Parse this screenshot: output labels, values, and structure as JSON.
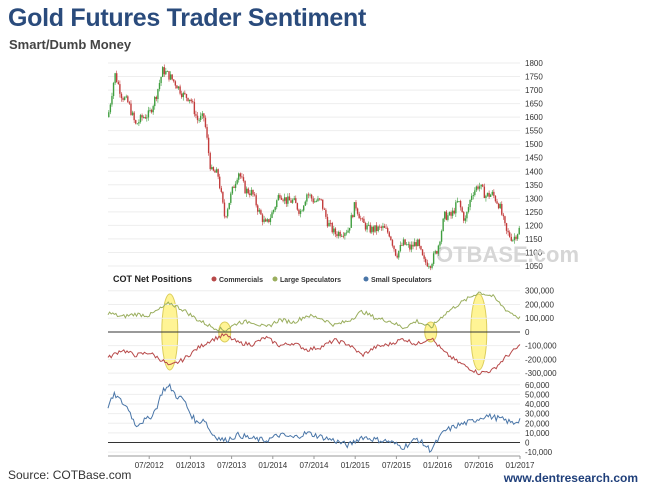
{
  "title": "Gold Futures Trader Sentiment",
  "subtitle": "Smart/Dumb Money",
  "source": "Source: COTBase.com",
  "website": "www.dentresearch.com",
  "watermark": "OTBASE.com",
  "colors": {
    "title": "#2a4b7c",
    "up_candle": "#3f9e3f",
    "down_candle": "#c23b3b",
    "commercials": "#b84a4a",
    "large_speculators": "#9aae5e",
    "small_speculators": "#4a76a8",
    "highlight_fill": "#fff38a",
    "highlight_stroke": "#d8c84a"
  },
  "chart_data": [
    {
      "type": "candlestick",
      "name": "price",
      "title": "",
      "ylim": [
        1050,
        1800
      ],
      "yticks": [
        1050,
        1100,
        1150,
        1200,
        1250,
        1300,
        1350,
        1400,
        1450,
        1500,
        1550,
        1600,
        1650,
        1700,
        1750,
        1800
      ],
      "x_range": [
        "2012-01",
        "2017-01"
      ],
      "price_path": [
        [
          "2012-01",
          1600
        ],
        [
          "2012-02",
          1760
        ],
        [
          "2012-03",
          1680
        ],
        [
          "2012-04",
          1650
        ],
        [
          "2012-05",
          1570
        ],
        [
          "2012-06",
          1600
        ],
        [
          "2012-07",
          1610
        ],
        [
          "2012-08",
          1680
        ],
        [
          "2012-09",
          1775
        ],
        [
          "2012-10",
          1750
        ],
        [
          "2012-11",
          1720
        ],
        [
          "2012-12",
          1680
        ],
        [
          "2013-01",
          1670
        ],
        [
          "2013-02",
          1590
        ],
        [
          "2013-03",
          1600
        ],
        [
          "2013-04",
          1400
        ],
        [
          "2013-05",
          1390
        ],
        [
          "2013-06",
          1230
        ],
        [
          "2013-07",
          1320
        ],
        [
          "2013-08",
          1400
        ],
        [
          "2013-09",
          1330
        ],
        [
          "2013-10",
          1320
        ],
        [
          "2013-11",
          1250
        ],
        [
          "2013-12",
          1200
        ],
        [
          "2014-01",
          1250
        ],
        [
          "2014-02",
          1320
        ],
        [
          "2014-03",
          1290
        ],
        [
          "2014-04",
          1290
        ],
        [
          "2014-05",
          1250
        ],
        [
          "2014-06",
          1320
        ],
        [
          "2014-07",
          1290
        ],
        [
          "2014-08",
          1290
        ],
        [
          "2014-09",
          1210
        ],
        [
          "2014-10",
          1170
        ],
        [
          "2014-11",
          1175
        ],
        [
          "2014-12",
          1185
        ],
        [
          "2015-01",
          1280
        ],
        [
          "2015-02",
          1210
        ],
        [
          "2015-03",
          1185
        ],
        [
          "2015-04",
          1185
        ],
        [
          "2015-05",
          1190
        ],
        [
          "2015-06",
          1170
        ],
        [
          "2015-07",
          1090
        ],
        [
          "2015-08",
          1135
        ],
        [
          "2015-09",
          1115
        ],
        [
          "2015-10",
          1140
        ],
        [
          "2015-11",
          1065
        ],
        [
          "2015-12",
          1060
        ],
        [
          "2016-01",
          1115
        ],
        [
          "2016-02",
          1235
        ],
        [
          "2016-03",
          1235
        ],
        [
          "2016-04",
          1290
        ],
        [
          "2016-05",
          1215
        ],
        [
          "2016-06",
          1320
        ],
        [
          "2016-07",
          1350
        ],
        [
          "2016-08",
          1310
        ],
        [
          "2016-09",
          1315
        ],
        [
          "2016-10",
          1275
        ],
        [
          "2016-11",
          1175
        ],
        [
          "2016-12",
          1150
        ],
        [
          "2017-01",
          1190
        ]
      ]
    },
    {
      "type": "line",
      "name": "cot_net_positions",
      "title": "COT Net Positions",
      "ylim": [
        -350000,
        320000
      ],
      "yticks": [
        -300000,
        -200000,
        -100000,
        0,
        100000,
        200000,
        300000
      ],
      "ytick_labels": [
        "-300,000",
        "-200,000",
        "-100,000",
        "0",
        "100,000",
        "200,000",
        "300,000"
      ],
      "series": [
        {
          "name": "Commercials",
          "color": "#b84a4a",
          "values": [
            [
              "2012-01",
              -190000
            ],
            [
              "2012-03",
              -130000
            ],
            [
              "2012-05",
              -170000
            ],
            [
              "2012-07",
              -150000
            ],
            [
              "2012-09",
              -210000
            ],
            [
              "2012-10",
              -250000
            ],
            [
              "2012-12",
              -200000
            ],
            [
              "2013-02",
              -120000
            ],
            [
              "2013-04",
              -60000
            ],
            [
              "2013-06",
              -20000
            ],
            [
              "2013-08",
              -80000
            ],
            [
              "2013-10",
              -90000
            ],
            [
              "2013-12",
              -40000
            ],
            [
              "2014-02",
              -100000
            ],
            [
              "2014-04",
              -80000
            ],
            [
              "2014-06",
              -130000
            ],
            [
              "2014-08",
              -110000
            ],
            [
              "2014-10",
              -60000
            ],
            [
              "2014-12",
              -90000
            ],
            [
              "2015-02",
              -170000
            ],
            [
              "2015-04",
              -110000
            ],
            [
              "2015-06",
              -90000
            ],
            [
              "2015-08",
              -50000
            ],
            [
              "2015-10",
              -90000
            ],
            [
              "2015-12",
              -40000
            ],
            [
              "2016-02",
              -150000
            ],
            [
              "2016-04",
              -220000
            ],
            [
              "2016-07",
              -300000
            ],
            [
              "2016-09",
              -280000
            ],
            [
              "2016-11",
              -180000
            ],
            [
              "2017-01",
              -100000
            ]
          ]
        },
        {
          "name": "Large Speculators",
          "color": "#9aae5e",
          "values": [
            [
              "2012-01",
              140000
            ],
            [
              "2012-03",
              110000
            ],
            [
              "2012-05",
              130000
            ],
            [
              "2012-07",
              120000
            ],
            [
              "2012-09",
              180000
            ],
            [
              "2012-10",
              210000
            ],
            [
              "2012-12",
              160000
            ],
            [
              "2013-02",
              90000
            ],
            [
              "2013-04",
              40000
            ],
            [
              "2013-06",
              10000
            ],
            [
              "2013-08",
              70000
            ],
            [
              "2013-10",
              75000
            ],
            [
              "2013-12",
              30000
            ],
            [
              "2014-02",
              90000
            ],
            [
              "2014-04",
              70000
            ],
            [
              "2014-06",
              120000
            ],
            [
              "2014-08",
              100000
            ],
            [
              "2014-10",
              50000
            ],
            [
              "2014-12",
              80000
            ],
            [
              "2015-02",
              150000
            ],
            [
              "2015-04",
              100000
            ],
            [
              "2015-06",
              80000
            ],
            [
              "2015-08",
              30000
            ],
            [
              "2015-10",
              80000
            ],
            [
              "2015-12",
              30000
            ],
            [
              "2016-02",
              130000
            ],
            [
              "2016-04",
              200000
            ],
            [
              "2016-07",
              290000
            ],
            [
              "2016-09",
              260000
            ],
            [
              "2016-11",
              160000
            ],
            [
              "2017-01",
              100000
            ]
          ]
        }
      ]
    },
    {
      "type": "line",
      "name": "small_speculators",
      "ylim": [
        -14000,
        65000
      ],
      "yticks": [
        -10000,
        0,
        10000,
        20000,
        30000,
        40000,
        50000,
        60000
      ],
      "ytick_labels": [
        "-10,000",
        "0",
        "10,000",
        "20,000",
        "30,000",
        "40,000",
        "50,000",
        "60,000"
      ],
      "series": [
        {
          "name": "Small Speculators",
          "color": "#4a76a8",
          "values": [
            [
              "2012-01",
              38000
            ],
            [
              "2012-02",
              50000
            ],
            [
              "2012-03",
              42000
            ],
            [
              "2012-04",
              35000
            ],
            [
              "2012-05",
              18000
            ],
            [
              "2012-06",
              22000
            ],
            [
              "2012-07",
              25000
            ],
            [
              "2012-08",
              35000
            ],
            [
              "2012-09",
              55000
            ],
            [
              "2012-10",
              58000
            ],
            [
              "2012-11",
              48000
            ],
            [
              "2012-12",
              45000
            ],
            [
              "2013-01",
              30000
            ],
            [
              "2013-02",
              20000
            ],
            [
              "2013-03",
              25000
            ],
            [
              "2013-04",
              10000
            ],
            [
              "2013-05",
              5000
            ],
            [
              "2013-06",
              2000
            ],
            [
              "2013-08",
              8000
            ],
            [
              "2013-10",
              4000
            ],
            [
              "2013-12",
              2000
            ],
            [
              "2014-02",
              8000
            ],
            [
              "2014-04",
              5000
            ],
            [
              "2014-06",
              10000
            ],
            [
              "2014-08",
              6000
            ],
            [
              "2014-10",
              2000
            ],
            [
              "2014-12",
              -3000
            ],
            [
              "2015-02",
              6000
            ],
            [
              "2015-04",
              3000
            ],
            [
              "2015-06",
              1000
            ],
            [
              "2015-08",
              -5000
            ],
            [
              "2015-10",
              4000
            ],
            [
              "2015-12",
              -8000
            ],
            [
              "2016-01",
              2000
            ],
            [
              "2016-02",
              12000
            ],
            [
              "2016-04",
              18000
            ],
            [
              "2016-06",
              22000
            ],
            [
              "2016-08",
              28000
            ],
            [
              "2016-10",
              25000
            ],
            [
              "2016-12",
              20000
            ],
            [
              "2017-01",
              24000
            ]
          ]
        }
      ]
    },
    {
      "type": "annotation",
      "name": "highlighted_extremes",
      "ellipses": [
        {
          "center": "2012-10",
          "type": "extreme"
        },
        {
          "center": "2013-06",
          "type": "crossover"
        },
        {
          "center": "2015-12",
          "type": "crossover"
        },
        {
          "center": "2016-07",
          "type": "extreme"
        }
      ]
    }
  ],
  "x_axis": {
    "ticks": [
      "07/2012",
      "01/2013",
      "07/2013",
      "01/2014",
      "07/2014",
      "01/2015",
      "07/2015",
      "01/2016",
      "07/2016",
      "01/2017"
    ]
  }
}
